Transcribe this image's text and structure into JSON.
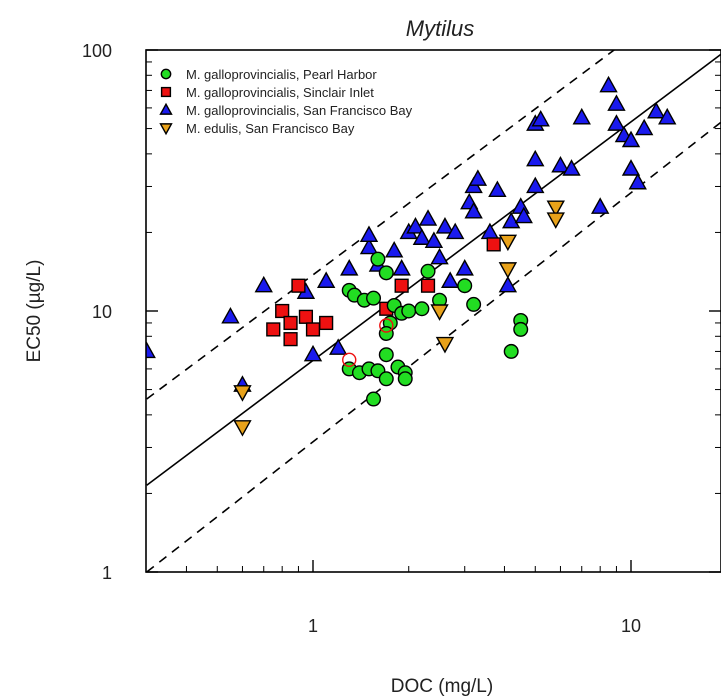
{
  "chart_data": {
    "type": "scatter",
    "title": "Mytilus",
    "xlabel": "DOC (mg/L)",
    "ylabel": "EC50 (µg/L)",
    "xscale": "log",
    "yscale": "log",
    "xlim": [
      0.3,
      20
    ],
    "ylim": [
      1,
      100
    ],
    "x_ticks": [
      "1",
      "10"
    ],
    "y_ticks": [
      "1",
      "10",
      "100"
    ],
    "legend_position": "top-left",
    "series": [
      {
        "name": "M. galloprovincialis, Pearl Harbor",
        "marker": "circle",
        "color": "#22dd22",
        "points": [
          [
            1.3,
            12
          ],
          [
            1.35,
            11.5
          ],
          [
            1.45,
            11
          ],
          [
            1.55,
            11.2
          ],
          [
            1.6,
            15.8
          ],
          [
            1.7,
            14
          ],
          [
            1.8,
            10.5
          ],
          [
            1.9,
            9.8
          ],
          [
            1.75,
            9
          ],
          [
            1.7,
            8.2
          ],
          [
            2.0,
            10
          ],
          [
            2.2,
            10.2
          ],
          [
            2.3,
            14.2
          ],
          [
            2.5,
            11
          ],
          [
            3.0,
            12.5
          ],
          [
            3.2,
            10.6
          ],
          [
            4.5,
            9.2
          ],
          [
            4.5,
            8.5
          ],
          [
            4.2,
            7.0
          ],
          [
            1.3,
            6.0
          ],
          [
            1.4,
            5.8
          ],
          [
            1.5,
            6.0
          ],
          [
            1.6,
            5.9
          ],
          [
            1.7,
            6.8
          ],
          [
            1.7,
            5.5
          ],
          [
            1.85,
            6.1
          ],
          [
            1.95,
            5.8
          ],
          [
            1.95,
            5.5
          ],
          [
            1.55,
            4.6
          ]
        ]
      },
      {
        "name": "M. galloprovincialis, Sinclair Inlet",
        "marker": "square",
        "color": "#ee1111",
        "points": [
          [
            0.75,
            8.5
          ],
          [
            0.8,
            10.0
          ],
          [
            0.85,
            9.0
          ],
          [
            0.85,
            7.8
          ],
          [
            0.9,
            12.5
          ],
          [
            0.95,
            9.5
          ],
          [
            1.0,
            8.5
          ],
          [
            1.1,
            9.0
          ],
          [
            1.7,
            10.2
          ],
          [
            1.9,
            12.5
          ],
          [
            2.3,
            12.5
          ],
          [
            3.7,
            18.0
          ]
        ]
      },
      {
        "name": "M. galloprovincialis, San Francisco Bay",
        "marker": "triangle-up",
        "color": "#1a1aee",
        "points": [
          [
            0.3,
            7.0
          ],
          [
            0.55,
            9.5
          ],
          [
            0.6,
            5.2
          ],
          [
            0.7,
            12.5
          ],
          [
            0.95,
            11.8
          ],
          [
            1.0,
            6.8
          ],
          [
            1.1,
            13
          ],
          [
            1.2,
            7.2
          ],
          [
            1.3,
            14.5
          ],
          [
            1.5,
            17.5
          ],
          [
            1.5,
            19.5
          ],
          [
            1.6,
            15
          ],
          [
            1.8,
            17
          ],
          [
            1.9,
            14.5
          ],
          [
            2.0,
            20
          ],
          [
            2.1,
            21
          ],
          [
            2.2,
            19
          ],
          [
            2.3,
            22.5
          ],
          [
            2.4,
            18.5
          ],
          [
            2.5,
            16
          ],
          [
            2.6,
            21
          ],
          [
            2.8,
            20
          ],
          [
            3.0,
            14.5
          ],
          [
            3.1,
            26
          ],
          [
            3.2,
            30
          ],
          [
            3.3,
            32
          ],
          [
            3.6,
            20
          ],
          [
            3.8,
            29
          ],
          [
            4.2,
            22
          ],
          [
            4.5,
            25
          ],
          [
            4.6,
            23
          ],
          [
            5.0,
            30
          ],
          [
            5.0,
            38
          ],
          [
            5.0,
            52
          ],
          [
            5.2,
            54
          ],
          [
            6.0,
            36
          ],
          [
            6.5,
            35
          ],
          [
            7.0,
            55
          ],
          [
            8.0,
            25
          ],
          [
            8.5,
            73
          ],
          [
            9.0,
            62
          ],
          [
            9.0,
            52
          ],
          [
            9.5,
            47
          ],
          [
            10.0,
            45
          ],
          [
            10.0,
            35
          ],
          [
            10.5,
            31
          ],
          [
            11.0,
            50
          ],
          [
            12.0,
            58
          ],
          [
            13.0,
            55
          ],
          [
            4.1,
            12.5
          ],
          [
            3.2,
            24
          ],
          [
            2.7,
            13
          ]
        ]
      },
      {
        "name": "M. edulis, San Francisco Bay",
        "marker": "triangle-down",
        "color": "#e8a21a",
        "points": [
          [
            0.6,
            4.9
          ],
          [
            0.6,
            3.6
          ],
          [
            2.5,
            10.0
          ],
          [
            2.6,
            7.5
          ],
          [
            4.1,
            14.5
          ],
          [
            4.1,
            18.5
          ],
          [
            5.8,
            25
          ],
          [
            5.8,
            22.5
          ]
        ]
      }
    ],
    "regression_line": {
      "style": "solid",
      "x": [
        0.3,
        20
      ],
      "y": [
        2.15,
        100
      ]
    },
    "prediction_bounds": [
      {
        "style": "dashed",
        "x": [
          0.3,
          20
        ],
        "y": [
          4.6,
          210
        ]
      },
      {
        "style": "dashed",
        "x": [
          0.3,
          20
        ],
        "y": [
          1.0,
          55
        ]
      }
    ],
    "open_markers": [
      [
        1.3,
        6.5
      ],
      [
        1.7,
        8.8
      ]
    ]
  }
}
